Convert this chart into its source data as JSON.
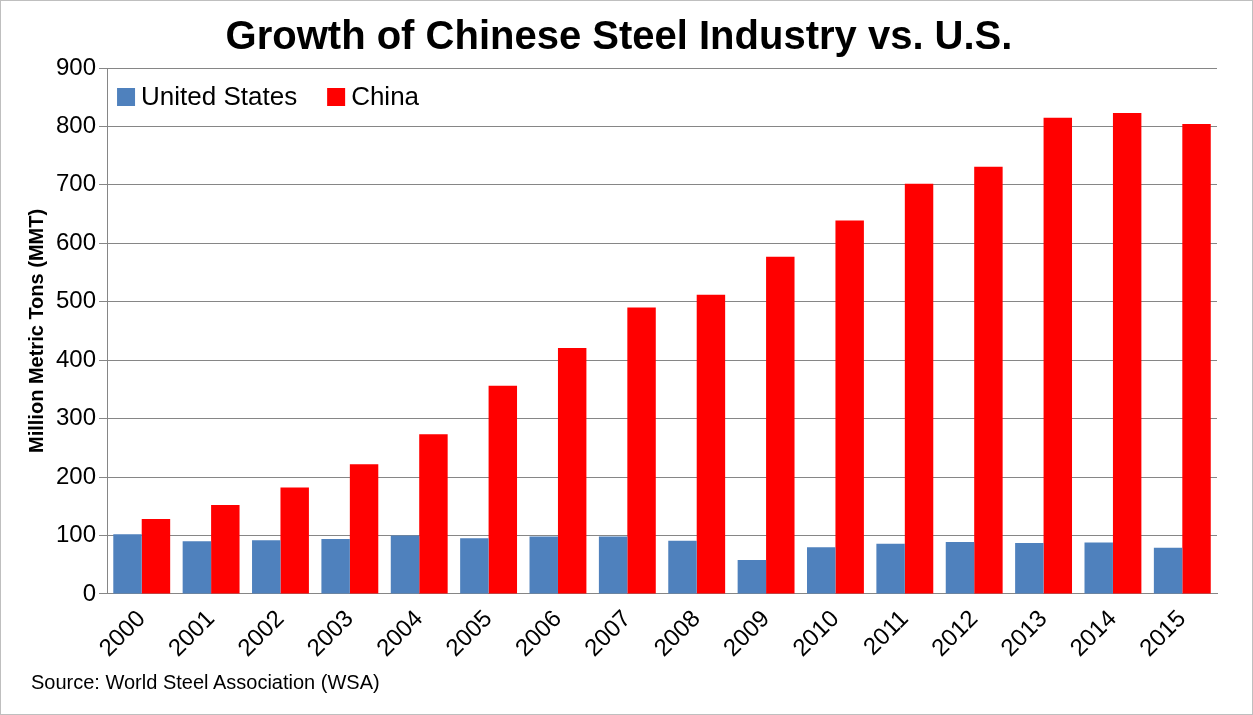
{
  "chart_data": {
    "type": "bar",
    "title": "Growth of Chinese Steel Industry vs. U.S.",
    "ylabel": "Million Metric Tons (MMT)",
    "categories": [
      "2000",
      "2001",
      "2002",
      "2003",
      "2004",
      "2005",
      "2006",
      "2007",
      "2008",
      "2009",
      "2010",
      "2011",
      "2012",
      "2013",
      "2014",
      "2015"
    ],
    "series": [
      {
        "name": "United States",
        "color": "#4f81bd",
        "values": [
          102,
          90,
          92,
          94,
          100,
          95,
          98,
          98,
          91,
          58,
          80,
          86,
          89,
          87,
          88,
          79
        ]
      },
      {
        "name": "China",
        "color": "#ff0000",
        "values": [
          128,
          152,
          182,
          222,
          273,
          356,
          421,
          490,
          512,
          577,
          639,
          702,
          731,
          815,
          823,
          804
        ]
      }
    ],
    "ylim": [
      0,
      900
    ],
    "yticks": [
      0,
      100,
      200,
      300,
      400,
      500,
      600,
      700,
      800,
      900
    ],
    "grid": "y",
    "legend": "top left",
    "annotations": [
      "Source: World Steel Association (WSA)"
    ]
  }
}
